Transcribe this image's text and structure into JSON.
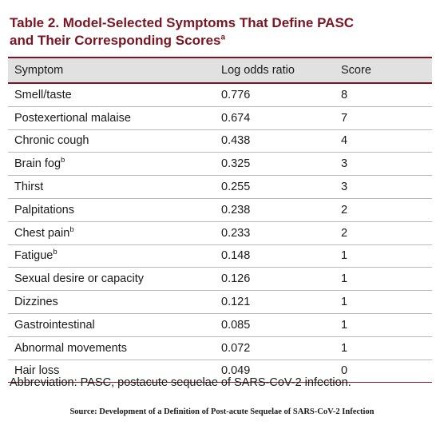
{
  "title": {
    "line1": "Table 2. Model-Selected Symptoms That Define PASC",
    "line2": "and Their Corresponding Scores",
    "line2_sup": "a"
  },
  "table": {
    "columns": [
      "Symptom",
      "Log odds ratio",
      "Score"
    ],
    "rows": [
      {
        "symptom": "Smell/taste",
        "sup": "",
        "log_odds": "0.776",
        "score": "8"
      },
      {
        "symptom": "Postexertional malaise",
        "sup": "",
        "log_odds": "0.674",
        "score": "7"
      },
      {
        "symptom": "Chronic cough",
        "sup": "",
        "log_odds": "0.438",
        "score": "4"
      },
      {
        "symptom": "Brain fog",
        "sup": "b",
        "log_odds": "0.325",
        "score": "3"
      },
      {
        "symptom": "Thirst",
        "sup": "",
        "log_odds": "0.255",
        "score": "3"
      },
      {
        "symptom": "Palpitations",
        "sup": "",
        "log_odds": "0.238",
        "score": "2"
      },
      {
        "symptom": "Chest pain",
        "sup": "b",
        "log_odds": "0.233",
        "score": "2"
      },
      {
        "symptom": "Fatigue",
        "sup": "b",
        "log_odds": "0.148",
        "score": "1"
      },
      {
        "symptom": "Sexual desire or capacity",
        "sup": "",
        "log_odds": "0.126",
        "score": "1"
      },
      {
        "symptom": "Dizzines",
        "sup": "",
        "log_odds": "0.121",
        "score": "1"
      },
      {
        "symptom": "Gastrointestinal",
        "sup": "",
        "log_odds": "0.085",
        "score": "1"
      },
      {
        "symptom": "Abnormal movements",
        "sup": "",
        "log_odds": "0.072",
        "score": "1"
      },
      {
        "symptom": "Hair loss",
        "sup": "",
        "log_odds": "0.049",
        "score": "0"
      }
    ]
  },
  "abbreviation": "Abbreviation: PASC, postacute sequelae of SARS-CoV-2 infection.",
  "source": "Source: Development of a Definition of Post-acute Sequelae of SARS-CoV-2 Infection",
  "colors": {
    "accent": "#7a1523",
    "header_bg": "#e1e1e1",
    "row_divider": "#b9b9b9"
  }
}
